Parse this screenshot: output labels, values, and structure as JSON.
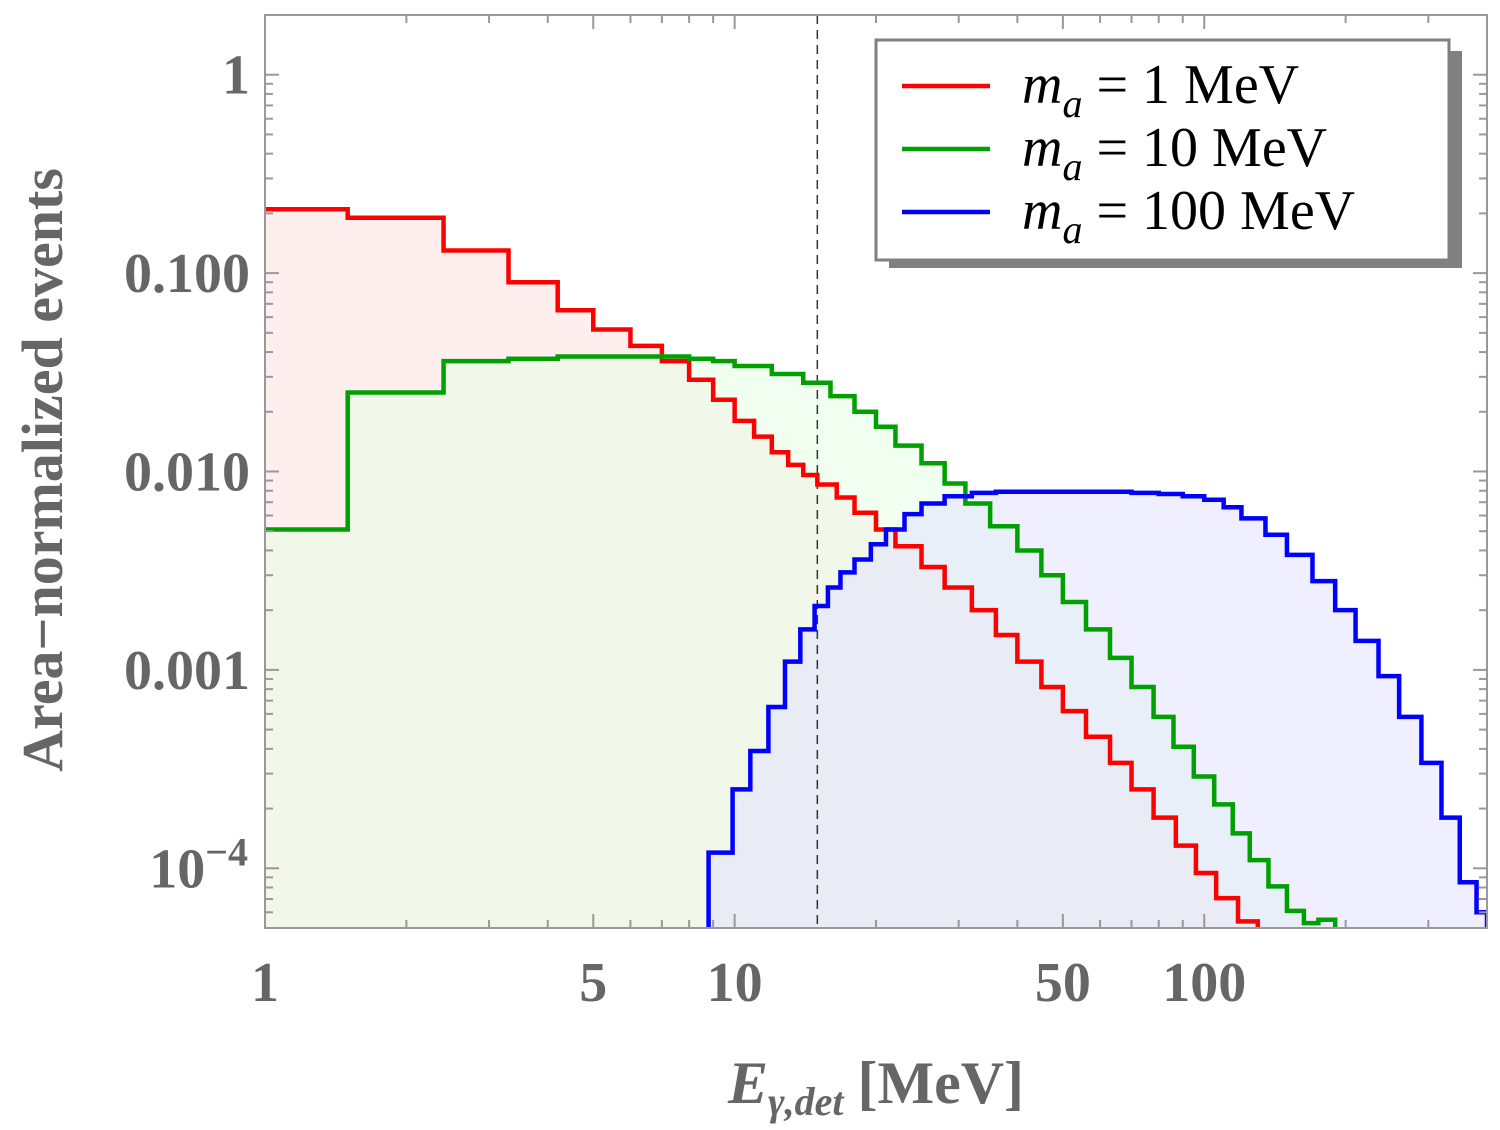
{
  "chart_data": {
    "type": "step-histogram",
    "title": "",
    "xlabel": {
      "main": "E",
      "sub": "γ,det",
      "unit": "[MeV]"
    },
    "ylabel": "Area−normalized events",
    "xscale": "log",
    "yscale": "log",
    "xlim": [
      1,
      400
    ],
    "ylim": [
      5e-05,
      2
    ],
    "x_ticks": [
      {
        "value": 1,
        "label": "1"
      },
      {
        "value": 5,
        "label": "5"
      },
      {
        "value": 10,
        "label": "10"
      },
      {
        "value": 50,
        "label": "50"
      },
      {
        "value": 100,
        "label": "100"
      }
    ],
    "y_ticks": [
      {
        "value": 1,
        "label": "1"
      },
      {
        "value": 0.1,
        "label": "0.100"
      },
      {
        "value": 0.01,
        "label": "0.010"
      },
      {
        "value": 0.001,
        "label": "0.001"
      },
      {
        "value": 0.0001,
        "label": "10",
        "exponent": "−4"
      }
    ],
    "reference_line": {
      "x": 15,
      "style": "dashed"
    },
    "legend_position": "top-right",
    "series": [
      {
        "name": "m_a = 1 MeV",
        "label": {
          "symbol": "m",
          "sub": "a",
          "rest": " = 1 MeV"
        },
        "color": "#ff0000",
        "fill": "#ffe0e0",
        "edges": [
          1,
          1.5,
          2.4,
          3.3,
          4.2,
          5.0,
          6.0,
          7.0,
          8.0,
          9.0,
          10.0,
          11.0,
          12.0,
          13.0,
          14.0,
          15.0,
          16.5,
          18.0,
          20.0,
          22.0,
          25.0,
          28.0,
          32.0,
          36.0,
          40.0,
          45.0,
          50.0,
          56.0,
          63.0,
          70.0,
          78.0,
          87.0,
          96.0,
          106.0,
          118.0,
          130.0
        ],
        "values": [
          0.21,
          0.19,
          0.13,
          0.09,
          0.065,
          0.052,
          0.043,
          0.036,
          0.029,
          0.023,
          0.018,
          0.015,
          0.0125,
          0.0108,
          0.0096,
          0.0086,
          0.0074,
          0.0062,
          0.0051,
          0.0042,
          0.0033,
          0.0026,
          0.002,
          0.0015,
          0.0011,
          0.00082,
          0.00062,
          0.00046,
          0.00034,
          0.00025,
          0.00018,
          0.00013,
          9.46e-05,
          7.07e-05,
          5.4e-05
        ]
      },
      {
        "name": "m_a = 10 MeV",
        "label": {
          "symbol": "m",
          "sub": "a",
          "rest": " = 10 MeV"
        },
        "color": "#00a000",
        "fill": "#e5ffe5",
        "edges": [
          1,
          1.5,
          2.4,
          3.3,
          4.2,
          5.0,
          6.0,
          7.0,
          8.0,
          9.0,
          10.0,
          12.0,
          14.0,
          16.0,
          18.0,
          20.0,
          22.0,
          25.0,
          28.0,
          31.0,
          35.0,
          40.0,
          45.0,
          50.0,
          56.0,
          63.0,
          70.0,
          78.0,
          86.0,
          95.0,
          105.0,
          115.0,
          125.0,
          137.0,
          150.0,
          163.0,
          175.0,
          190.0
        ],
        "values": [
          0.0051,
          0.025,
          0.036,
          0.037,
          0.038,
          0.038,
          0.038,
          0.038,
          0.037,
          0.036,
          0.034,
          0.031,
          0.028,
          0.024,
          0.02,
          0.0168,
          0.0135,
          0.011,
          0.0087,
          0.0069,
          0.0053,
          0.004,
          0.003,
          0.0022,
          0.0016,
          0.00115,
          0.00082,
          0.00058,
          0.00041,
          0.00029,
          0.00021,
          0.00015,
          0.00011,
          8.1e-05,
          6.1e-05,
          5.29e-05,
          5.5e-05
        ]
      },
      {
        "name": "m_a = 100 MeV",
        "label": {
          "symbol": "m",
          "sub": "a",
          "rest": " = 100 MeV"
        },
        "color": "#0000ff",
        "fill": "#e2e2ff",
        "edges": [
          8.8,
          9.9,
          10.8,
          11.8,
          12.8,
          13.8,
          14.8,
          15.8,
          16.8,
          18.0,
          19.5,
          21.0,
          23.0,
          25.0,
          28.0,
          32.0,
          36.0,
          40.0,
          45.0,
          50.0,
          60.0,
          70.0,
          80.0,
          90.0,
          100.0,
          110.0,
          120.0,
          135.0,
          150.0,
          170.0,
          190.0,
          210.0,
          235.0,
          260.0,
          290.0,
          320.0,
          350.0,
          380.0,
          400.0
        ],
        "values": [
          0.00012,
          0.00025,
          0.00039,
          0.00065,
          0.0011,
          0.0016,
          0.0021,
          0.0026,
          0.0031,
          0.0036,
          0.0043,
          0.0051,
          0.0061,
          0.0069,
          0.0075,
          0.0078,
          0.0079,
          0.0079,
          0.0079,
          0.0079,
          0.0079,
          0.0078,
          0.0077,
          0.0075,
          0.0072,
          0.0066,
          0.0058,
          0.0048,
          0.0038,
          0.0028,
          0.002,
          0.0014,
          0.00093,
          0.00058,
          0.00034,
          0.00018,
          8.5e-05,
          6e-05
        ]
      }
    ]
  }
}
